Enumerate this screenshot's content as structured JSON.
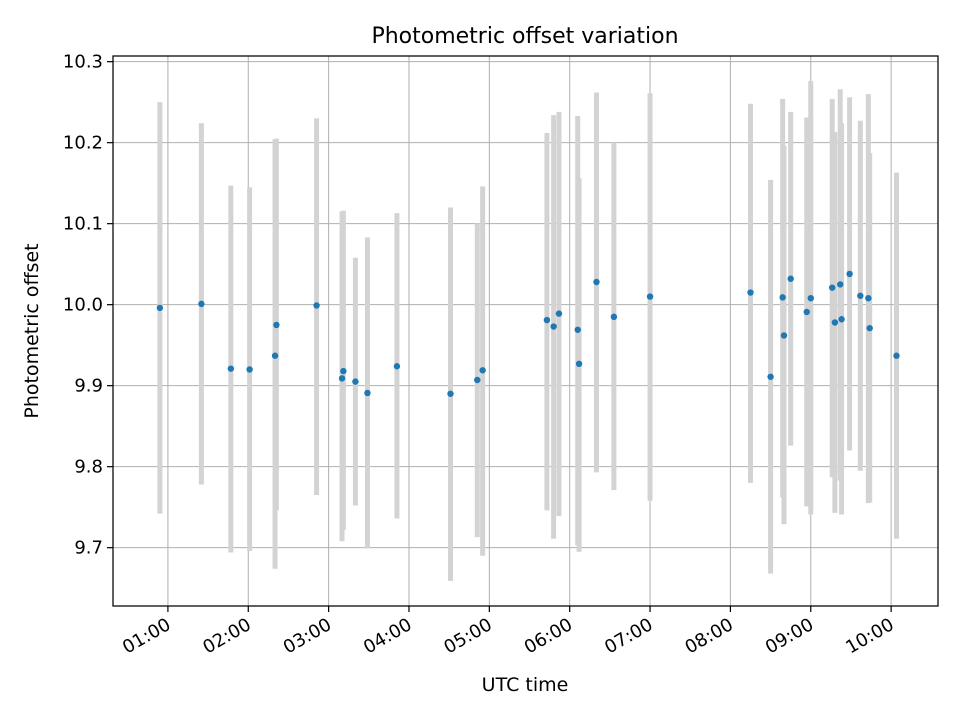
{
  "chart_data": {
    "type": "scatter",
    "title": "Photometric offset variation",
    "xlabel": "UTC time",
    "ylabel": "Photometric offset",
    "xlim": [
      "00:19",
      "10:35"
    ],
    "ylim": [
      9.628,
      10.307
    ],
    "grid": true,
    "marker_color": "#1f77b4",
    "errorbar_color": "#d3d3d3",
    "x_ticks": [
      "01:00",
      "02:00",
      "03:00",
      "04:00",
      "05:00",
      "06:00",
      "07:00",
      "08:00",
      "09:00",
      "10:00"
    ],
    "y_ticks": [
      "9.7",
      "9.8",
      "9.9",
      "10.0",
      "10.1",
      "10.2",
      "10.3"
    ],
    "series": [
      {
        "points": [
          {
            "x": "00:54",
            "y": 9.996,
            "ylo": 9.742,
            "yhi": 10.25
          },
          {
            "x": "01:25",
            "y": 10.001,
            "ylo": 9.778,
            "yhi": 10.224
          },
          {
            "x": "01:47",
            "y": 9.921,
            "ylo": 9.694,
            "yhi": 10.147
          },
          {
            "x": "02:01",
            "y": 9.92,
            "ylo": 9.696,
            "yhi": 10.145
          },
          {
            "x": "02:20",
            "y": 9.937,
            "ylo": 9.674,
            "yhi": 10.204
          },
          {
            "x": "02:21",
            "y": 9.975,
            "ylo": 9.746,
            "yhi": 10.205
          },
          {
            "x": "02:51",
            "y": 9.999,
            "ylo": 9.765,
            "yhi": 10.23
          },
          {
            "x": "03:10",
            "y": 9.909,
            "ylo": 9.708,
            "yhi": 10.115
          },
          {
            "x": "03:11",
            "y": 9.918,
            "ylo": 9.722,
            "yhi": 10.116
          },
          {
            "x": "03:20",
            "y": 9.905,
            "ylo": 9.752,
            "yhi": 10.058
          },
          {
            "x": "03:29",
            "y": 9.891,
            "ylo": 9.699,
            "yhi": 10.083
          },
          {
            "x": "03:51",
            "y": 9.924,
            "ylo": 9.736,
            "yhi": 10.113
          },
          {
            "x": "04:31",
            "y": 9.89,
            "ylo": 9.659,
            "yhi": 10.12
          },
          {
            "x": "04:51",
            "y": 9.907,
            "ylo": 9.713,
            "yhi": 10.1
          },
          {
            "x": "04:55",
            "y": 9.919,
            "ylo": 9.69,
            "yhi": 10.146
          },
          {
            "x": "05:43",
            "y": 9.981,
            "ylo": 9.746,
            "yhi": 10.212
          },
          {
            "x": "05:48",
            "y": 9.973,
            "ylo": 9.711,
            "yhi": 10.234
          },
          {
            "x": "05:52",
            "y": 9.989,
            "ylo": 9.739,
            "yhi": 10.238
          },
          {
            "x": "06:06",
            "y": 9.969,
            "ylo": 9.703,
            "yhi": 10.233
          },
          {
            "x": "06:07",
            "y": 9.927,
            "ylo": 9.695,
            "yhi": 10.156
          },
          {
            "x": "06:20",
            "y": 10.028,
            "ylo": 9.793,
            "yhi": 10.262
          },
          {
            "x": "06:33",
            "y": 9.985,
            "ylo": 9.771,
            "yhi": 10.2
          },
          {
            "x": "07:00",
            "y": 10.01,
            "ylo": 9.758,
            "yhi": 10.261
          },
          {
            "x": "08:15",
            "y": 10.015,
            "ylo": 9.78,
            "yhi": 10.248
          },
          {
            "x": "08:30",
            "y": 9.911,
            "ylo": 9.668,
            "yhi": 10.154
          },
          {
            "x": "08:39",
            "y": 10.009,
            "ylo": 9.762,
            "yhi": 10.254
          },
          {
            "x": "08:40",
            "y": 9.962,
            "ylo": 9.729,
            "yhi": 10.196
          },
          {
            "x": "08:45",
            "y": 10.032,
            "ylo": 9.826,
            "yhi": 10.238
          },
          {
            "x": "08:57",
            "y": 9.991,
            "ylo": 9.751,
            "yhi": 10.231
          },
          {
            "x": "09:00",
            "y": 10.008,
            "ylo": 9.741,
            "yhi": 10.276
          },
          {
            "x": "09:16",
            "y": 10.021,
            "ylo": 9.787,
            "yhi": 10.254
          },
          {
            "x": "09:18",
            "y": 9.978,
            "ylo": 9.743,
            "yhi": 10.213
          },
          {
            "x": "09:22",
            "y": 10.025,
            "ylo": 9.783,
            "yhi": 10.266
          },
          {
            "x": "09:23",
            "y": 9.982,
            "ylo": 9.741,
            "yhi": 10.224
          },
          {
            "x": "09:29",
            "y": 10.038,
            "ylo": 9.82,
            "yhi": 10.256
          },
          {
            "x": "09:37",
            "y": 10.011,
            "ylo": 9.795,
            "yhi": 10.227
          },
          {
            "x": "09:43",
            "y": 10.008,
            "ylo": 9.755,
            "yhi": 10.26
          },
          {
            "x": "09:44",
            "y": 9.971,
            "ylo": 9.756,
            "yhi": 10.187
          },
          {
            "x": "10:04",
            "y": 9.937,
            "ylo": 9.711,
            "yhi": 10.163
          }
        ]
      }
    ]
  }
}
